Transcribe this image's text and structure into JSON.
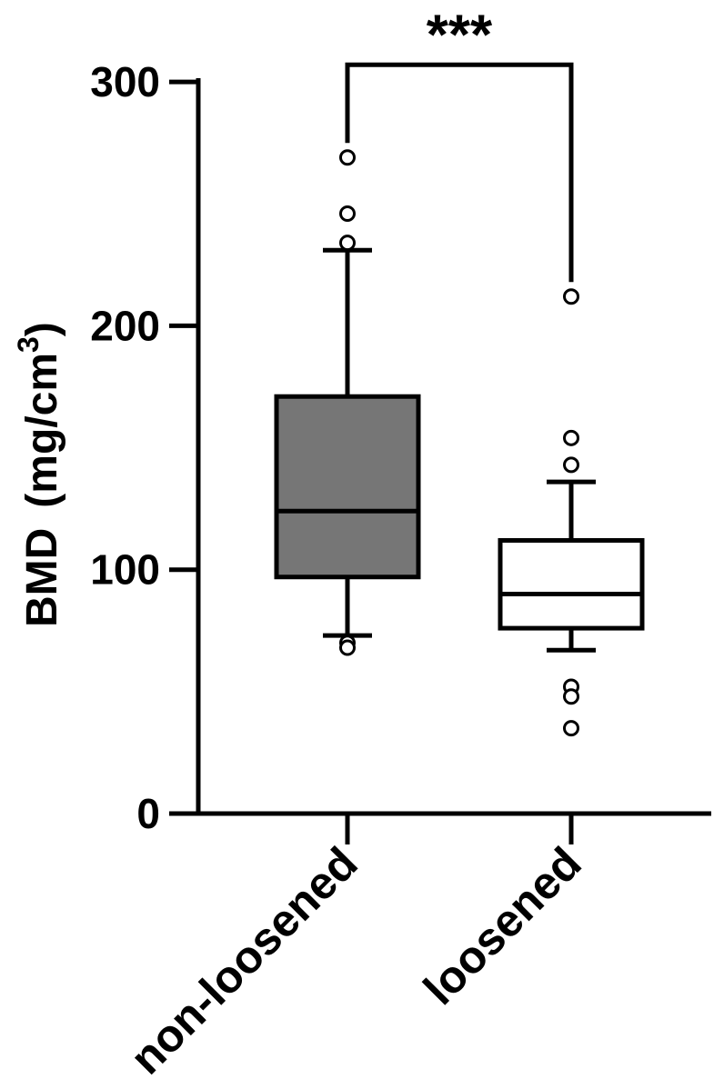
{
  "chart_data": {
    "type": "box",
    "ylabel": "BMD",
    "ylabel_unit": "(mg/cm",
    "ylabel_unit_sup": "3",
    "ylabel_unit_close": ")",
    "ylim": [
      0,
      300
    ],
    "yticks": [
      0,
      100,
      200,
      300
    ],
    "ytick_labels": [
      "0",
      "100",
      "200",
      "300"
    ],
    "categories": [
      "non-loosened",
      "loosened"
    ],
    "series": [
      {
        "category": "non-loosened",
        "fill": "#767676",
        "whisker_low": 73,
        "q1": 97,
        "median": 124,
        "q3": 171,
        "whisker_high": 231,
        "outliers": [
          269,
          246,
          234,
          70,
          68
        ]
      },
      {
        "category": "loosened",
        "fill": "#ffffff",
        "whisker_low": 67,
        "q1": 76,
        "median": 90,
        "q3": 112,
        "whisker_high": 136,
        "outliers": [
          212,
          154,
          143,
          52,
          48,
          35
        ]
      }
    ],
    "significance": {
      "between": [
        "non-loosened",
        "loosened"
      ],
      "label": "***",
      "y": 310
    },
    "grid": false,
    "legend": "none"
  }
}
